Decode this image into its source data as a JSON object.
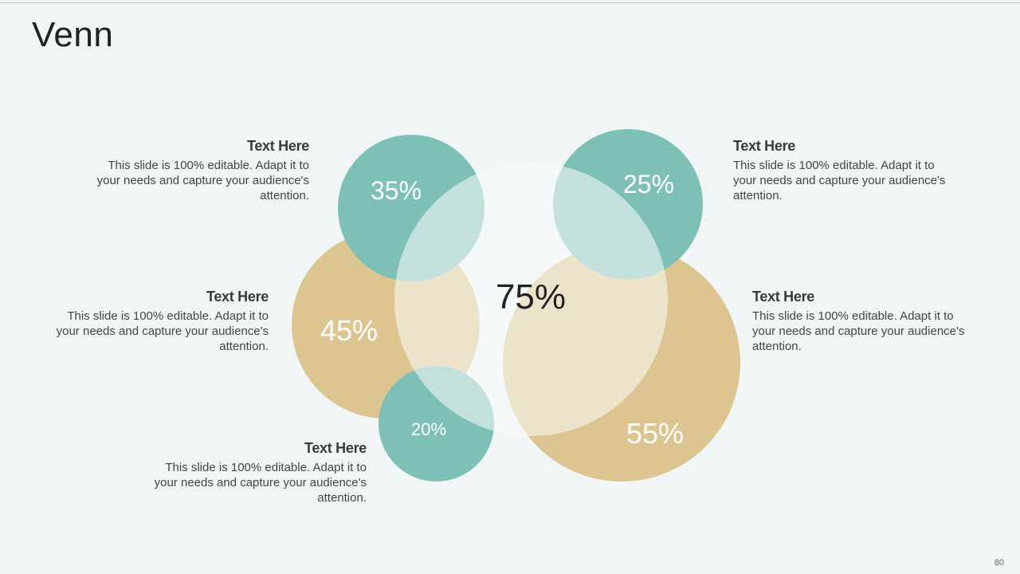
{
  "slide": {
    "title": "Venn",
    "page_number": "80"
  },
  "colors": {
    "background": "#eff6f5",
    "teal": "#7ec0b6",
    "tan": "#dcc591",
    "center": "#f8fafa"
  },
  "circles": [
    {
      "id": "center",
      "value": "75%"
    },
    {
      "id": "top-left",
      "value": "35%"
    },
    {
      "id": "top-right",
      "value": "25%"
    },
    {
      "id": "middle-left",
      "value": "45%"
    },
    {
      "id": "bottom-right",
      "value": "55%"
    },
    {
      "id": "bottom-small",
      "value": "20%"
    }
  ],
  "text_blocks": [
    {
      "id": "top-left",
      "heading": "Text Here",
      "body": "This slide is 100% editable. Adapt it to your needs and capture your audience's attention."
    },
    {
      "id": "top-right",
      "heading": "Text Here",
      "body": "This slide is 100% editable. Adapt it to your needs and capture your audience's attention."
    },
    {
      "id": "middle-left",
      "heading": "Text Here",
      "body": "This slide is 100% editable. Adapt it to your needs and capture your audience's attention."
    },
    {
      "id": "middle-right",
      "heading": "Text Here",
      "body": "This slide is 100% editable. Adapt it to your needs and capture your audience's attention."
    },
    {
      "id": "bottom-left",
      "heading": "Text Here",
      "body": "This slide is 100% editable. Adapt it to your needs and capture your audience's attention."
    }
  ]
}
